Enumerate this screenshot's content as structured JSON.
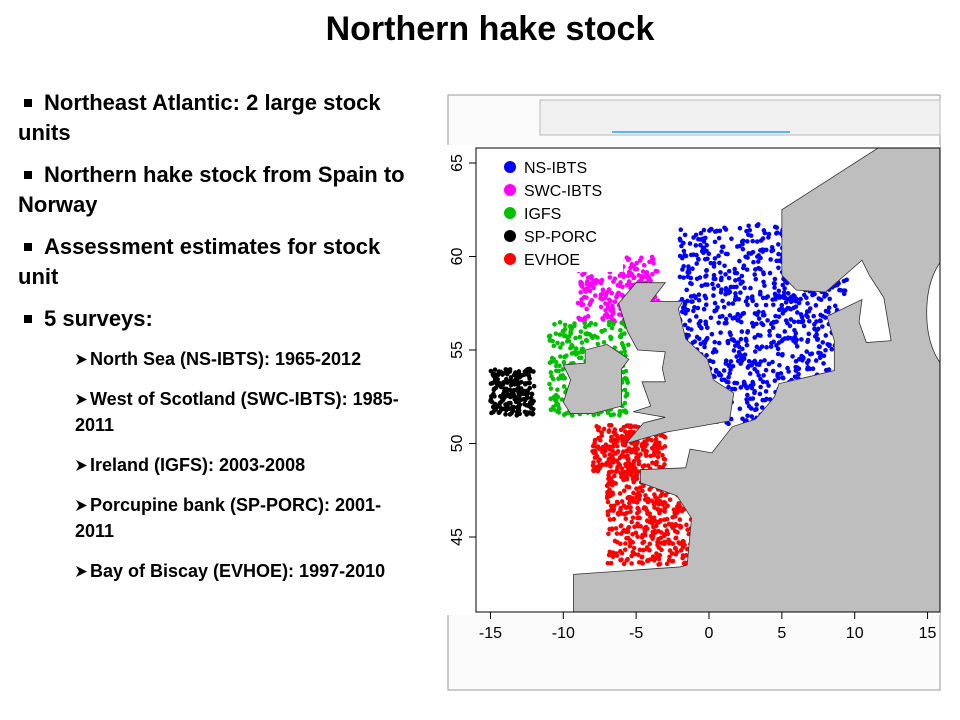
{
  "title": "Northern hake stock",
  "bullets": [
    {
      "text": "Northeast Atlantic: 2 large stock units"
    },
    {
      "text": "Northern hake stock from Spain to Norway"
    },
    {
      "text": "Assessment estimates for stock unit"
    },
    {
      "text": "5 surveys:",
      "items": [
        "North Sea (NS-IBTS): 1965-2012",
        "West of Scotland (SWC-IBTS): 1985-2011",
        "Ireland (IGFS): 2003-2008",
        "Porcupine bank (SP-PORC): 2001-2011",
        "Bay of Biscay (EVHOE): 1997-2010"
      ]
    }
  ],
  "map": {
    "legend": [
      {
        "label": "NS-IBTS",
        "color": "#0000ff"
      },
      {
        "label": "SWC-IBTS",
        "color": "#ff00ff"
      },
      {
        "label": "IGFS",
        "color": "#00c000"
      },
      {
        "label": "SP-PORC",
        "color": "#000000"
      },
      {
        "label": "EVHOE",
        "color": "#ff0000"
      }
    ],
    "xticks": [
      -15,
      -10,
      -5,
      0,
      5,
      10,
      15
    ],
    "yticks": [
      45,
      50,
      55,
      60,
      65
    ]
  }
}
